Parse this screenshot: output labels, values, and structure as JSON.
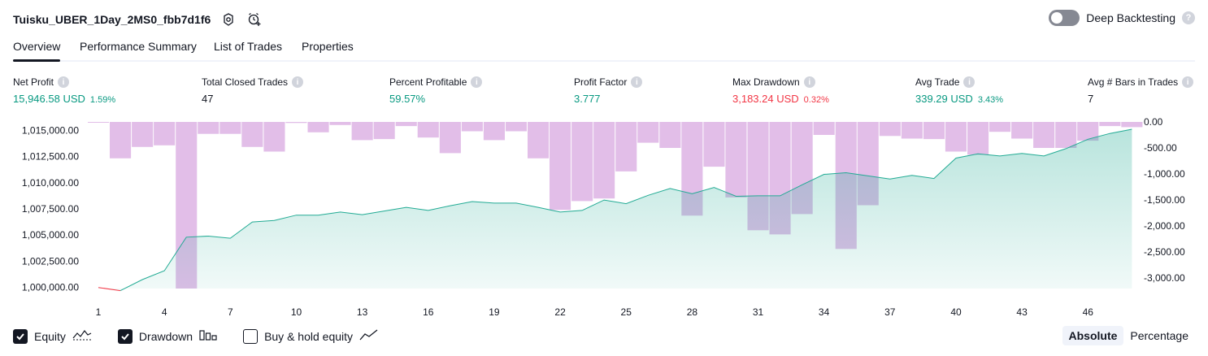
{
  "header": {
    "title": "Tuisku_UBER_1Day_2MS0_fbb7d1f6",
    "deep_backtesting_label": "Deep Backtesting",
    "help_glyph": "?"
  },
  "tabs": [
    {
      "label": "Overview",
      "active": true
    },
    {
      "label": "Performance Summary",
      "active": false
    },
    {
      "label": "List of Trades",
      "active": false
    },
    {
      "label": "Properties",
      "active": false
    }
  ],
  "metrics": [
    {
      "label": "Net Profit",
      "value": "15,946.58 USD",
      "pct": "1.59%",
      "color": "green"
    },
    {
      "label": "Total Closed Trades",
      "value": "47",
      "pct": "",
      "color": "neutral"
    },
    {
      "label": "Percent Profitable",
      "value": "59.57%",
      "pct": "",
      "color": "green"
    },
    {
      "label": "Profit Factor",
      "value": "3.777",
      "pct": "",
      "color": "green"
    },
    {
      "label": "Max Drawdown",
      "value": "3,183.24 USD",
      "pct": "0.32%",
      "color": "red"
    },
    {
      "label": "Avg Trade",
      "value": "339.29 USD",
      "pct": "3.43%",
      "color": "green"
    },
    {
      "label": "Avg # Bars in Trades",
      "value": "7",
      "pct": "",
      "color": "neutral"
    }
  ],
  "info_glyph": "i",
  "legend": {
    "equity_label": "Equity",
    "equity_checked": true,
    "drawdown_label": "Drawdown",
    "drawdown_checked": true,
    "buyhold_label": "Buy & hold equity",
    "buyhold_checked": false
  },
  "mode": {
    "absolute_label": "Absolute",
    "percentage_label": "Percentage",
    "selected": "Absolute"
  },
  "colors": {
    "equity_line": "#22ab94",
    "equity_fill": "#22ab94",
    "equity_start": "#f23645",
    "drawdown_bar": "#ce93d8",
    "text": "#131722"
  },
  "chart_data": {
    "type": "area",
    "x_ticks": [
      "1",
      "4",
      "7",
      "10",
      "13",
      "16",
      "19",
      "22",
      "25",
      "28",
      "31",
      "34",
      "37",
      "40",
      "43",
      "46"
    ],
    "left_axis": {
      "ticks": [
        "1,015,000.00",
        "1,012,500.00",
        "1,010,000.00",
        "1,007,500.00",
        "1,005,000.00",
        "1,002,500.00",
        "1,000,000.00"
      ],
      "tick_values": [
        1015000,
        1012500,
        1010000,
        1007500,
        1005000,
        1002500,
        1000000
      ],
      "range": [
        999900,
        1015800
      ]
    },
    "right_axis": {
      "ticks": [
        "0.00",
        "-500.00",
        "-1,000.00",
        "-1,500.00",
        "-2,000.00",
        "-2,500.00",
        "-3,000.00"
      ],
      "tick_values": [
        0,
        -500,
        -1000,
        -1500,
        -2000,
        -2500,
        -3000
      ],
      "range": [
        -3200,
        0
      ]
    },
    "series": [
      {
        "name": "Equity",
        "x": [
          1,
          2,
          3,
          4,
          5,
          6,
          7,
          8,
          9,
          10,
          11,
          12,
          13,
          14,
          15,
          16,
          17,
          18,
          19,
          20,
          21,
          22,
          23,
          24,
          25,
          26,
          27,
          28,
          29,
          30,
          31,
          32,
          33,
          34,
          35,
          36,
          37,
          38,
          39,
          40,
          41,
          42,
          43,
          44,
          45,
          46,
          47,
          48
        ],
        "values": [
          1000000,
          999700,
          1000750,
          1001600,
          1004800,
          1004900,
          1004700,
          1006250,
          1006400,
          1006900,
          1006900,
          1007200,
          1006950,
          1007300,
          1007650,
          1007350,
          1007800,
          1008200,
          1008050,
          1008050,
          1007650,
          1007200,
          1007350,
          1008350,
          1008000,
          1008800,
          1009450,
          1008950,
          1009550,
          1008700,
          1008750,
          1008750,
          1009800,
          1010800,
          1010950,
          1010650,
          1010350,
          1010700,
          1010400,
          1012350,
          1012750,
          1012550,
          1012800,
          1012550,
          1013250,
          1014150,
          1014700,
          1015100
        ]
      },
      {
        "name": "Drawdown",
        "x": [
          1,
          2,
          3,
          4,
          5,
          6,
          7,
          8,
          9,
          10,
          11,
          12,
          13,
          14,
          15,
          16,
          17,
          18,
          19,
          20,
          21,
          22,
          23,
          24,
          25,
          26,
          27,
          28,
          29,
          30,
          31,
          32,
          33,
          34,
          35,
          36,
          37,
          38,
          39,
          40,
          41,
          42,
          43,
          44,
          45,
          46,
          47,
          48
        ],
        "values": [
          -5,
          -700,
          -480,
          -450,
          -3200,
          -230,
          -230,
          -480,
          -570,
          -20,
          -200,
          -60,
          -350,
          -330,
          -80,
          -300,
          -600,
          -180,
          -350,
          -180,
          -700,
          -1690,
          -1520,
          -1470,
          -950,
          -400,
          -500,
          -1800,
          -860,
          -1450,
          -2080,
          -2160,
          -1770,
          -250,
          -2440,
          -1600,
          -270,
          -320,
          -330,
          -570,
          -630,
          -190,
          -320,
          -500,
          -500,
          -360,
          -80,
          -100
        ]
      }
    ]
  }
}
